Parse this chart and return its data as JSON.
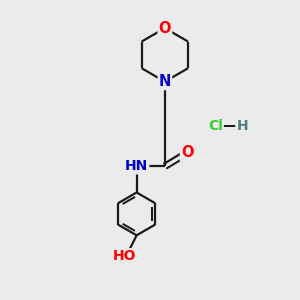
{
  "background_color": "#ebebeb",
  "bond_color": "#1a1a1a",
  "atom_colors": {
    "O": "#ff0000",
    "N": "#0000cd",
    "C": "#1a1a1a",
    "H": "#4a8080",
    "Cl": "#33cc33"
  },
  "font_size": 9.5,
  "figsize": [
    3.0,
    3.0
  ],
  "dpi": 100
}
